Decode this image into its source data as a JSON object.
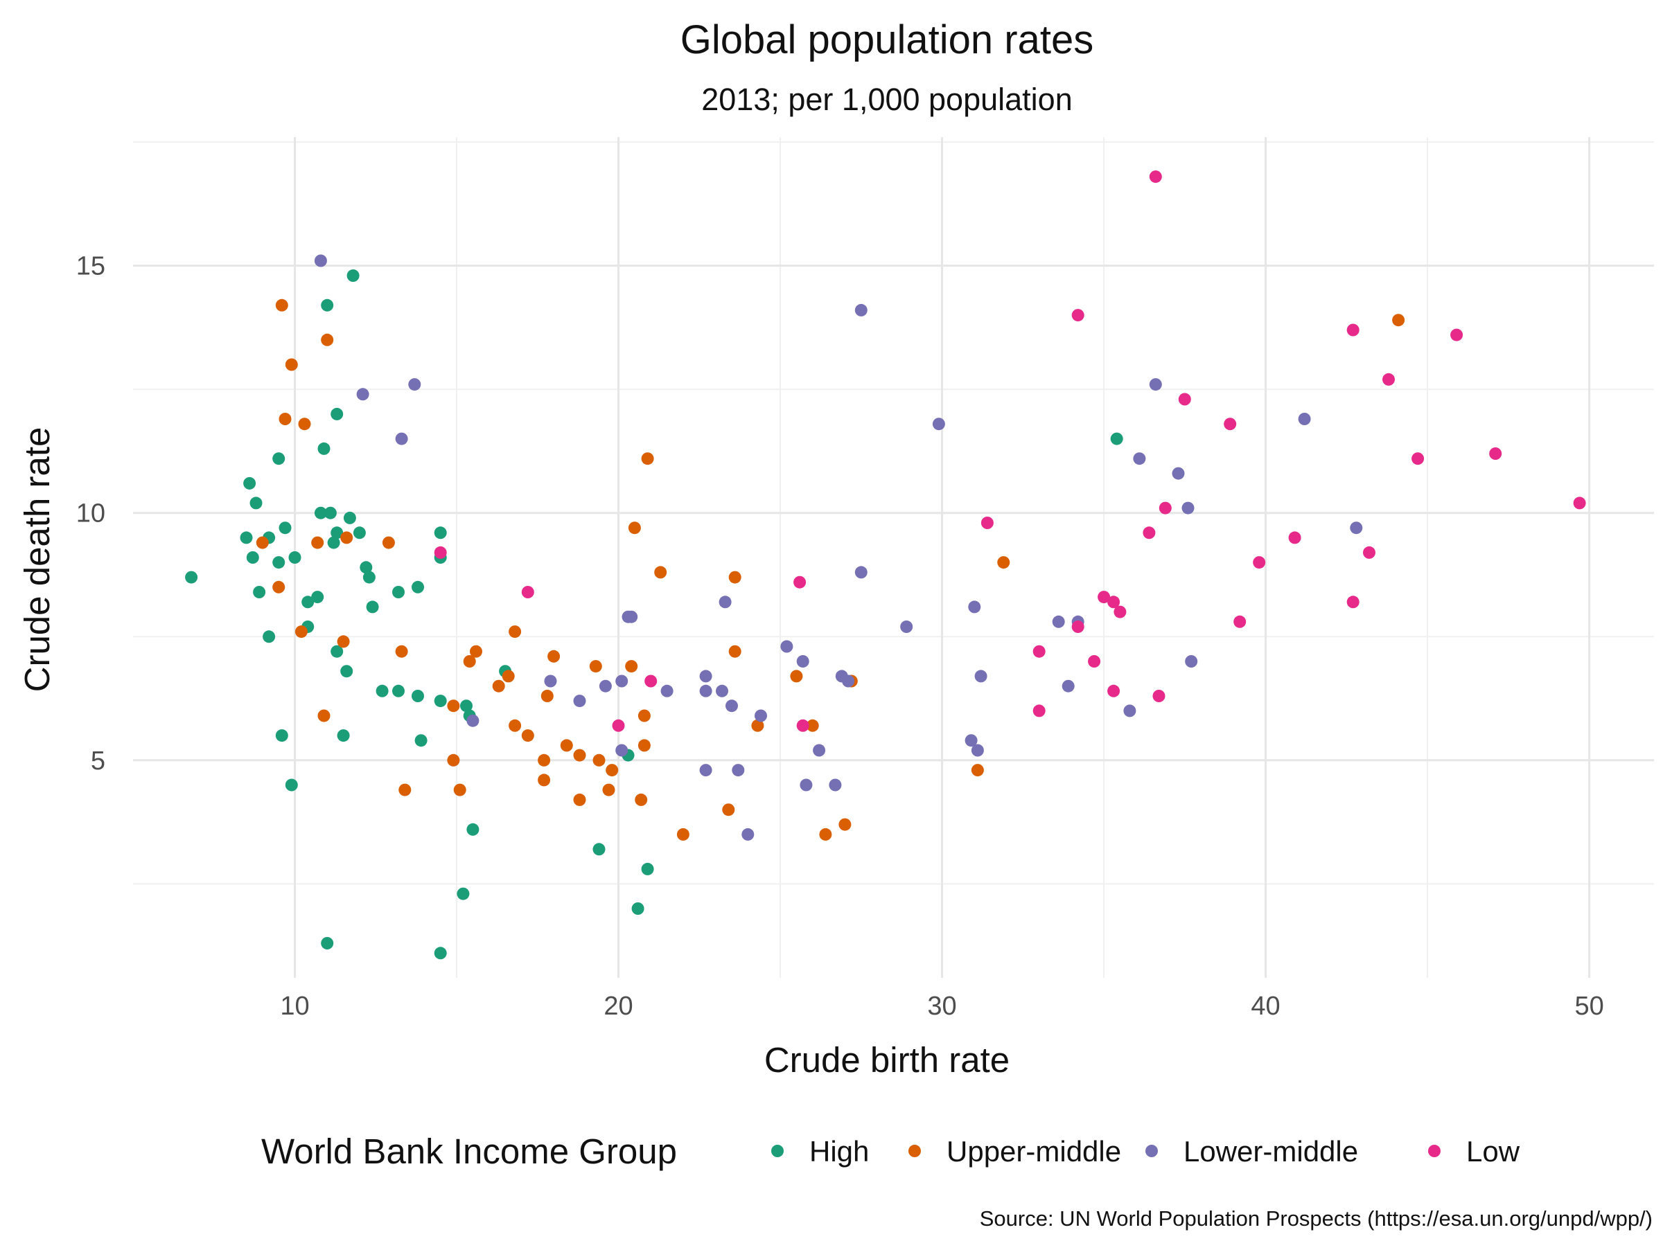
{
  "chart_data": {
    "type": "scatter",
    "title": "Global population rates",
    "subtitle": "2013; per 1,000 population",
    "xlabel": "Crude birth rate",
    "ylabel": "Crude death rate",
    "xlim": [
      5,
      52
    ],
    "ylim": [
      0.6,
      17.6
    ],
    "xticks": [
      10,
      20,
      30,
      40,
      50
    ],
    "yticks": [
      5,
      10,
      15
    ],
    "grid": true,
    "legend": {
      "title": "World Bank Income Group",
      "position": "bottom",
      "entries": [
        "High",
        "Upper-middle",
        "Lower-middle",
        "Low"
      ]
    },
    "caption": "Source: UN World Population Prospects (https://esa.un.org/unpd/wpp/)",
    "colors": {
      "High": "#1b9e77",
      "Upper-middle": "#d95f02",
      "Lower-middle": "#7570b3",
      "Low": "#e7298a"
    },
    "series": [
      {
        "name": "High",
        "points": [
          [
            6.8,
            8.7
          ],
          [
            8.5,
            9.5
          ],
          [
            8.6,
            10.6
          ],
          [
            8.7,
            9.1
          ],
          [
            8.8,
            10.2
          ],
          [
            8.9,
            8.4
          ],
          [
            9.2,
            9.5
          ],
          [
            9.2,
            7.5
          ],
          [
            9.5,
            11.1
          ],
          [
            9.5,
            9.0
          ],
          [
            9.6,
            5.5
          ],
          [
            9.7,
            9.7
          ],
          [
            9.9,
            4.5
          ],
          [
            10.0,
            9.1
          ],
          [
            10.4,
            8.2
          ],
          [
            10.4,
            7.7
          ],
          [
            10.7,
            8.3
          ],
          [
            10.8,
            10.0
          ],
          [
            10.9,
            11.3
          ],
          [
            11.0,
            14.2
          ],
          [
            11.0,
            1.3
          ],
          [
            11.1,
            10.0
          ],
          [
            11.2,
            9.4
          ],
          [
            11.3,
            12.0
          ],
          [
            11.3,
            9.6
          ],
          [
            11.3,
            7.2
          ],
          [
            11.5,
            5.5
          ],
          [
            11.6,
            6.8
          ],
          [
            11.7,
            9.9
          ],
          [
            11.8,
            14.8
          ],
          [
            12.0,
            9.6
          ],
          [
            12.2,
            8.9
          ],
          [
            12.3,
            8.7
          ],
          [
            12.4,
            8.1
          ],
          [
            12.7,
            6.4
          ],
          [
            13.2,
            6.4
          ],
          [
            13.2,
            8.4
          ],
          [
            13.8,
            8.5
          ],
          [
            13.8,
            6.3
          ],
          [
            13.9,
            5.4
          ],
          [
            14.5,
            9.6
          ],
          [
            14.5,
            9.1
          ],
          [
            14.5,
            6.2
          ],
          [
            14.5,
            1.1
          ],
          [
            15.2,
            2.3
          ],
          [
            15.3,
            6.1
          ],
          [
            15.4,
            5.9
          ],
          [
            15.5,
            3.6
          ],
          [
            16.5,
            6.8
          ],
          [
            19.4,
            3.2
          ],
          [
            20.3,
            5.1
          ],
          [
            20.6,
            2.0
          ],
          [
            20.9,
            2.8
          ],
          [
            35.4,
            11.5
          ]
        ]
      },
      {
        "name": "Upper-middle",
        "points": [
          [
            9.0,
            9.4
          ],
          [
            9.5,
            8.5
          ],
          [
            9.6,
            14.2
          ],
          [
            9.7,
            11.9
          ],
          [
            9.9,
            13.0
          ],
          [
            10.2,
            7.6
          ],
          [
            10.3,
            11.8
          ],
          [
            10.7,
            9.4
          ],
          [
            10.9,
            5.9
          ],
          [
            11.0,
            13.5
          ],
          [
            11.5,
            7.4
          ],
          [
            11.6,
            9.5
          ],
          [
            12.9,
            9.4
          ],
          [
            13.3,
            7.2
          ],
          [
            13.4,
            4.4
          ],
          [
            14.9,
            6.1
          ],
          [
            14.9,
            5.0
          ],
          [
            15.1,
            4.4
          ],
          [
            15.4,
            7.0
          ],
          [
            15.6,
            7.2
          ],
          [
            16.3,
            6.5
          ],
          [
            16.6,
            6.7
          ],
          [
            16.8,
            7.6
          ],
          [
            16.8,
            5.7
          ],
          [
            17.2,
            5.5
          ],
          [
            17.7,
            5.0
          ],
          [
            17.7,
            4.6
          ],
          [
            17.8,
            6.3
          ],
          [
            18.0,
            7.1
          ],
          [
            18.4,
            5.3
          ],
          [
            18.8,
            5.1
          ],
          [
            18.8,
            4.2
          ],
          [
            19.3,
            6.9
          ],
          [
            19.4,
            5.0
          ],
          [
            19.7,
            4.4
          ],
          [
            19.8,
            4.8
          ],
          [
            20.4,
            6.9
          ],
          [
            20.5,
            9.7
          ],
          [
            20.7,
            4.2
          ],
          [
            20.8,
            5.9
          ],
          [
            20.8,
            5.3
          ],
          [
            20.9,
            11.1
          ],
          [
            21.3,
            8.8
          ],
          [
            22.0,
            3.5
          ],
          [
            23.4,
            4.0
          ],
          [
            23.6,
            8.7
          ],
          [
            23.6,
            7.2
          ],
          [
            24.3,
            5.7
          ],
          [
            25.5,
            6.7
          ],
          [
            26.0,
            5.7
          ],
          [
            26.4,
            3.5
          ],
          [
            27.0,
            3.7
          ],
          [
            27.2,
            6.6
          ],
          [
            31.1,
            4.8
          ],
          [
            31.9,
            9.0
          ],
          [
            44.1,
            13.9
          ]
        ]
      },
      {
        "name": "Lower-middle",
        "points": [
          [
            10.8,
            15.1
          ],
          [
            12.1,
            12.4
          ],
          [
            13.3,
            11.5
          ],
          [
            13.7,
            12.6
          ],
          [
            15.5,
            5.8
          ],
          [
            17.9,
            6.6
          ],
          [
            18.8,
            6.2
          ],
          [
            19.6,
            6.5
          ],
          [
            20.1,
            6.6
          ],
          [
            20.1,
            5.2
          ],
          [
            20.3,
            7.9
          ],
          [
            20.4,
            7.9
          ],
          [
            21.5,
            6.4
          ],
          [
            22.7,
            6.7
          ],
          [
            22.7,
            6.4
          ],
          [
            22.7,
            4.8
          ],
          [
            23.2,
            6.4
          ],
          [
            23.3,
            8.2
          ],
          [
            23.5,
            6.1
          ],
          [
            23.7,
            4.8
          ],
          [
            24.0,
            3.5
          ],
          [
            24.4,
            5.9
          ],
          [
            25.2,
            7.3
          ],
          [
            25.7,
            7.0
          ],
          [
            25.8,
            4.5
          ],
          [
            26.2,
            5.2
          ],
          [
            26.7,
            4.5
          ],
          [
            26.9,
            6.7
          ],
          [
            27.1,
            6.6
          ],
          [
            27.5,
            14.1
          ],
          [
            27.5,
            8.8
          ],
          [
            28.9,
            7.7
          ],
          [
            29.9,
            11.8
          ],
          [
            30.9,
            5.4
          ],
          [
            31.0,
            8.1
          ],
          [
            31.1,
            5.2
          ],
          [
            31.2,
            6.7
          ],
          [
            33.6,
            7.8
          ],
          [
            33.9,
            6.5
          ],
          [
            34.2,
            7.8
          ],
          [
            35.8,
            6.0
          ],
          [
            36.1,
            11.1
          ],
          [
            36.6,
            12.6
          ],
          [
            37.3,
            10.8
          ],
          [
            37.6,
            10.1
          ],
          [
            37.7,
            7.0
          ],
          [
            41.2,
            11.9
          ],
          [
            42.8,
            9.7
          ]
        ]
      },
      {
        "name": "Low",
        "points": [
          [
            14.5,
            9.2
          ],
          [
            17.2,
            8.4
          ],
          [
            20.0,
            5.7
          ],
          [
            21.0,
            6.6
          ],
          [
            25.6,
            8.6
          ],
          [
            25.7,
            5.7
          ],
          [
            31.4,
            9.8
          ],
          [
            33.0,
            7.2
          ],
          [
            33.0,
            6.0
          ],
          [
            34.2,
            7.7
          ],
          [
            34.2,
            14.0
          ],
          [
            34.7,
            7.0
          ],
          [
            35.0,
            8.3
          ],
          [
            35.3,
            8.2
          ],
          [
            35.3,
            6.4
          ],
          [
            35.5,
            8.0
          ],
          [
            36.4,
            9.6
          ],
          [
            36.6,
            16.8
          ],
          [
            36.7,
            6.3
          ],
          [
            36.9,
            10.1
          ],
          [
            37.5,
            12.3
          ],
          [
            38.9,
            11.8
          ],
          [
            39.2,
            7.8
          ],
          [
            39.8,
            9.0
          ],
          [
            40.9,
            9.5
          ],
          [
            42.7,
            13.7
          ],
          [
            42.7,
            8.2
          ],
          [
            43.2,
            9.2
          ],
          [
            43.8,
            12.7
          ],
          [
            44.7,
            11.1
          ],
          [
            45.9,
            13.6
          ],
          [
            47.1,
            11.2
          ],
          [
            49.7,
            10.2
          ]
        ]
      }
    ]
  }
}
